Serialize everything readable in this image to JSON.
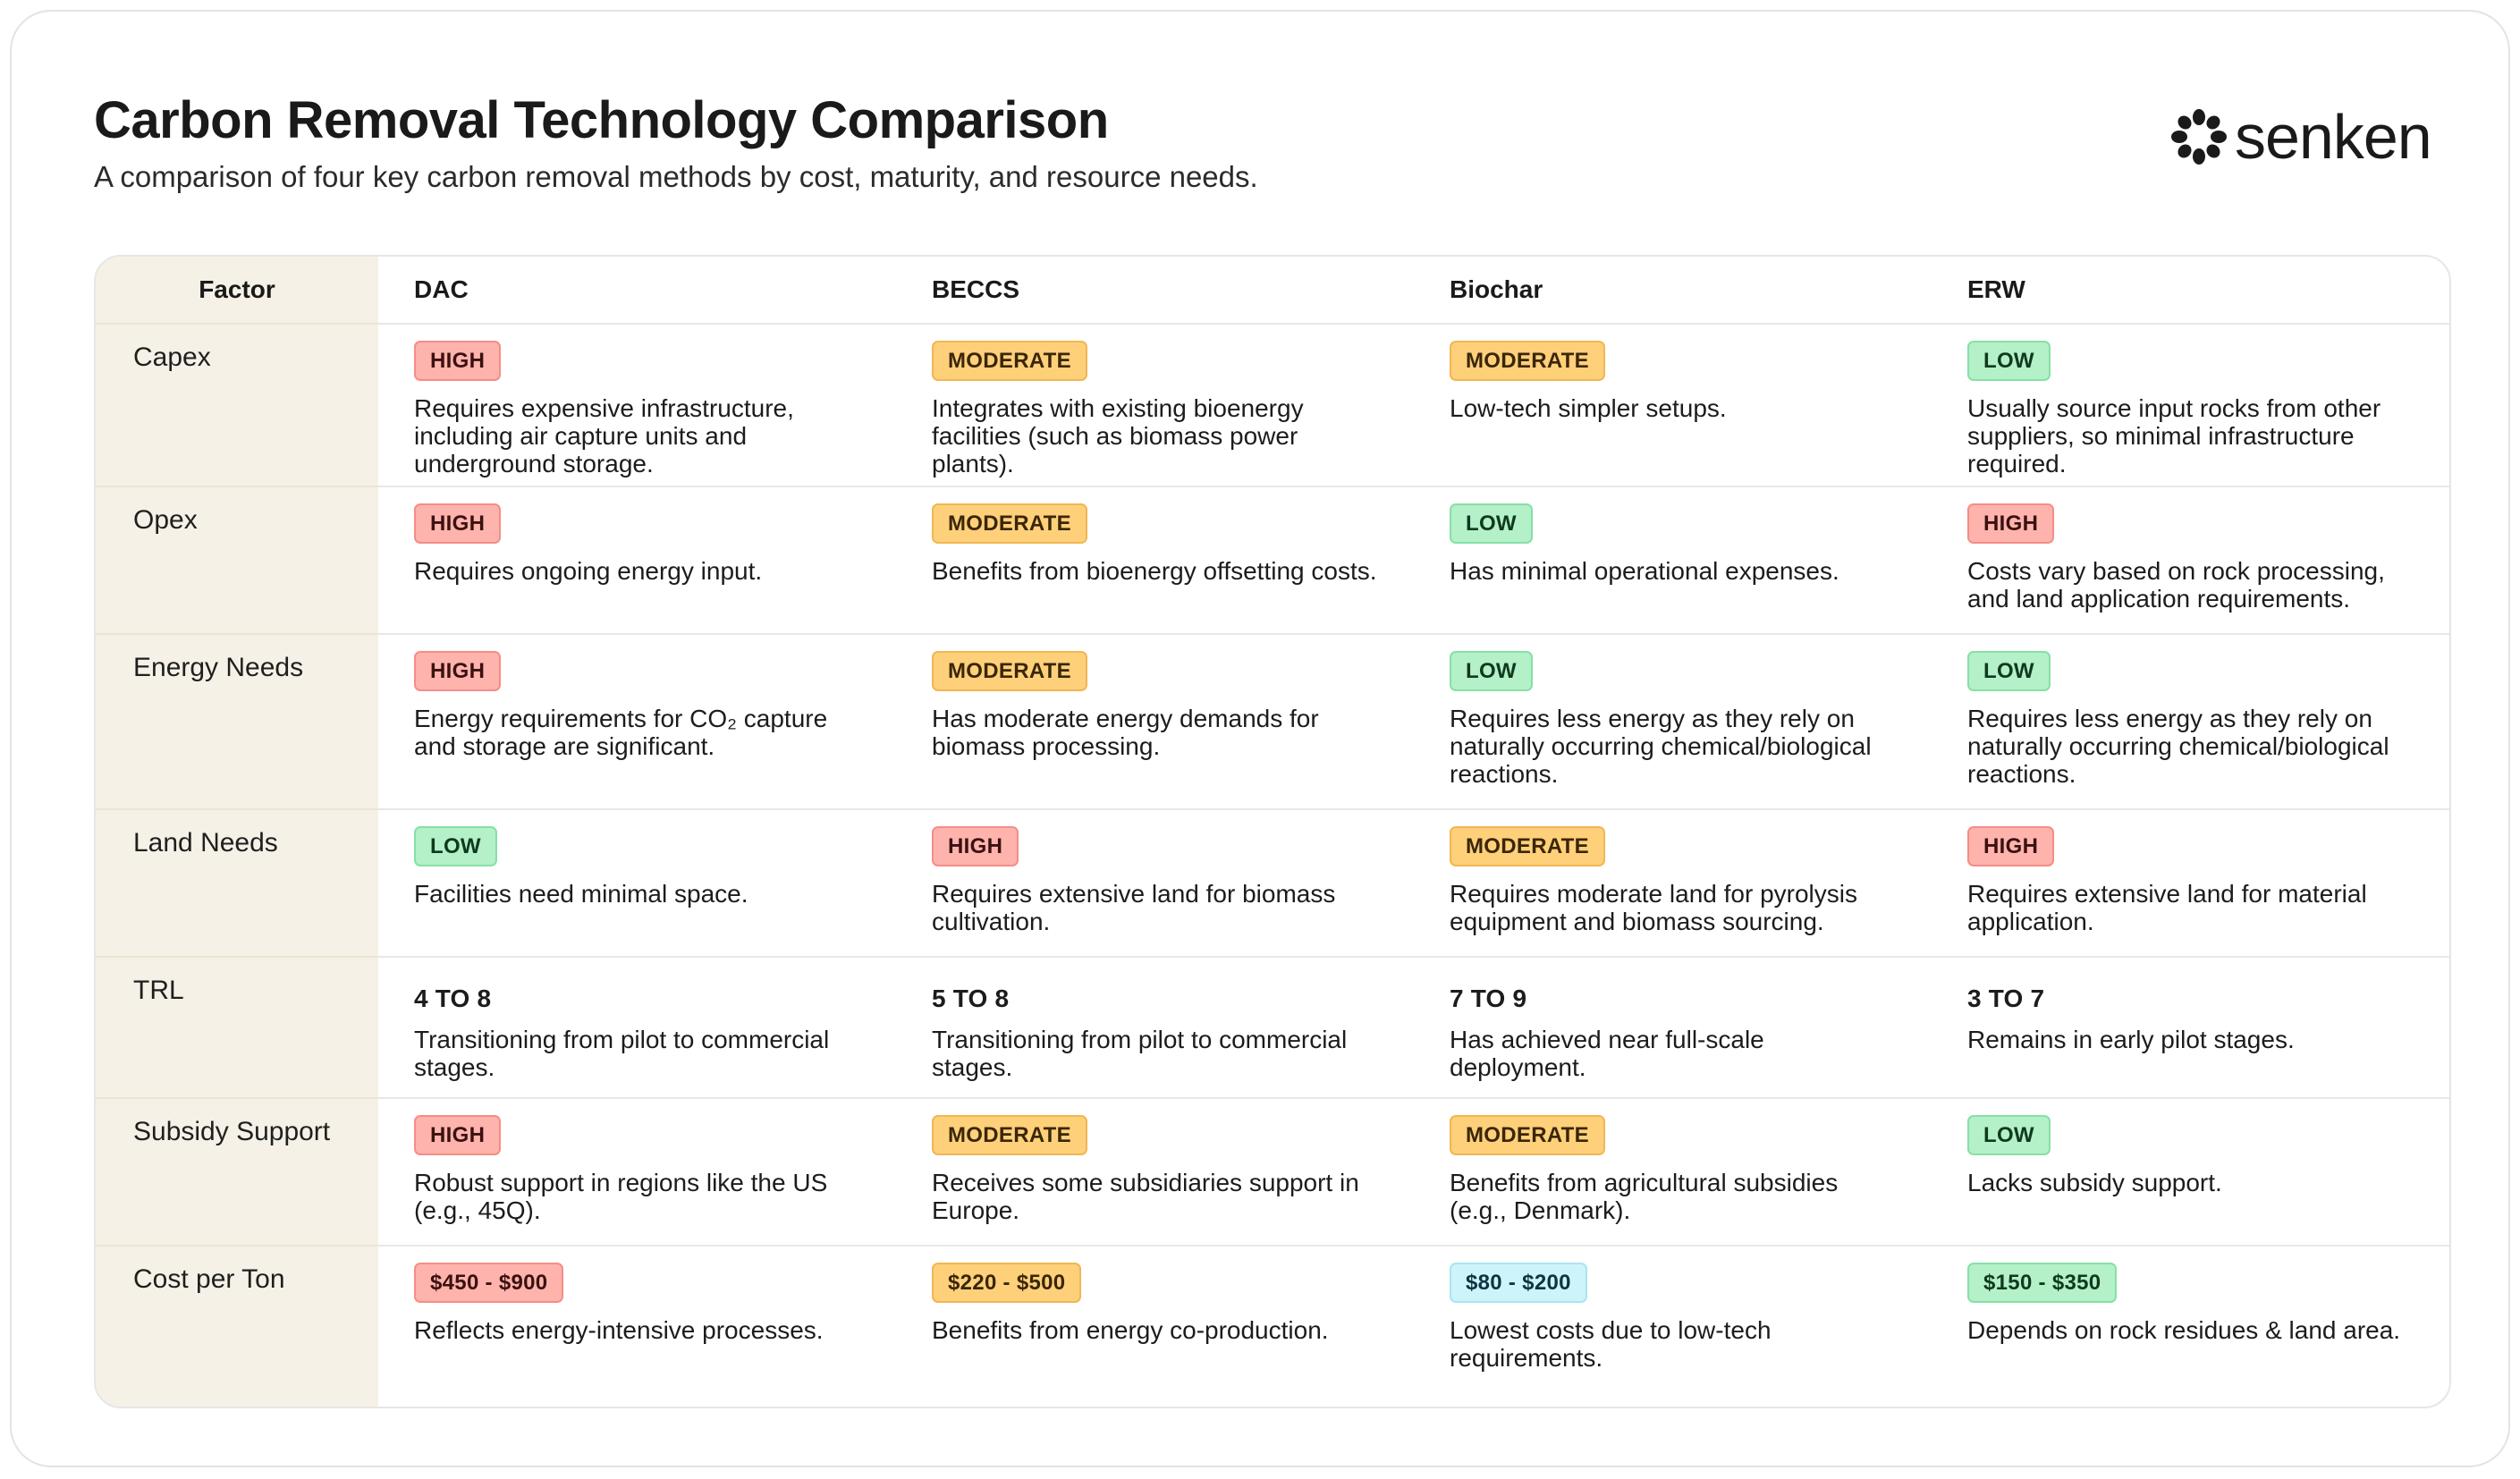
{
  "header": {
    "title": "Carbon Removal Technology Comparison",
    "subtitle": "A comparison of four key carbon removal methods by cost, maturity, and resource needs.",
    "logo_text": "senken"
  },
  "table": {
    "factor_header": "Factor",
    "columns": [
      "DAC",
      "BECCS",
      "Biochar",
      "ERW"
    ],
    "rows": [
      {
        "factor": "Capex",
        "cells": [
          {
            "level": "HIGH",
            "desc": "Requires expensive infrastructure, including air capture units and underground storage."
          },
          {
            "level": "MODERATE",
            "desc": "Integrates with existing bioenergy facilities (such as biomass power plants)."
          },
          {
            "level": "MODERATE",
            "desc": "Low-tech simpler setups."
          },
          {
            "level": "LOW",
            "desc": "Usually source input rocks from other suppliers, so minimal infrastructure required."
          }
        ]
      },
      {
        "factor": "Opex",
        "cells": [
          {
            "level": "HIGH",
            "desc": "Requires ongoing energy input."
          },
          {
            "level": "MODERATE",
            "desc": "Benefits from bioenergy offsetting costs."
          },
          {
            "level": "LOW",
            "desc": "Has minimal operational expenses."
          },
          {
            "level": "HIGH",
            "desc": "Costs vary based on rock processing, and land application requirements."
          }
        ]
      },
      {
        "factor": "Energy Needs",
        "cells": [
          {
            "level": "HIGH",
            "desc": "Energy requirements for CO₂ capture and storage are significant."
          },
          {
            "level": "MODERATE",
            "desc": "Has moderate energy demands for biomass processing."
          },
          {
            "level": "LOW",
            "desc": "Requires less energy as they rely on naturally occurring chemical/biological reactions."
          },
          {
            "level": "LOW",
            "desc": "Requires less energy as they rely on naturally occurring chemical/biological reactions."
          }
        ]
      },
      {
        "factor": "Land Needs",
        "cells": [
          {
            "level": "LOW",
            "desc": "Facilities need minimal space."
          },
          {
            "level": "HIGH",
            "desc": "Requires extensive land for biomass cultivation."
          },
          {
            "level": "MODERATE",
            "desc": "Requires moderate land for pyrolysis equipment and biomass sourcing."
          },
          {
            "level": "HIGH",
            "desc": "Requires extensive land for material application."
          }
        ]
      },
      {
        "factor": "TRL",
        "cells": [
          {
            "level": "4 TO 8",
            "desc": "Transitioning from pilot to commercial stages."
          },
          {
            "level": "5 TO 8",
            "desc": "Transitioning from pilot to commercial stages."
          },
          {
            "level": "7 TO 9",
            "desc": "Has achieved near full-scale deployment."
          },
          {
            "level": "3 TO 7",
            "desc": "Remains in early pilot stages."
          }
        ]
      },
      {
        "factor": "Subsidy Support",
        "cells": [
          {
            "level": "HIGH",
            "desc": "Robust support in regions like the US (e.g., 45Q)."
          },
          {
            "level": "MODERATE",
            "desc": "Receives some subsidiaries support in Europe."
          },
          {
            "level": "MODERATE",
            "desc": "Benefits from agricultural subsidies (e.g., Denmark)."
          },
          {
            "level": "LOW",
            "desc": "Lacks subsidy support."
          }
        ]
      },
      {
        "factor": "Cost per Ton",
        "cells": [
          {
            "level": "$450 - $900",
            "desc": "Reflects energy-intensive processes."
          },
          {
            "level": "$220 - $500",
            "desc": "Benefits from energy co-production."
          },
          {
            "level": "$80 - $200",
            "desc": "Lowest costs due to low-tech requirements."
          },
          {
            "level": "$150 - $350",
            "desc": "Depends on rock residues & land area."
          }
        ]
      }
    ]
  },
  "colors": {
    "high": "#ffb3ad",
    "moderate": "#ffd07a",
    "low": "#b4f0c8",
    "teal": "#cdf4fb",
    "factor_column": "#f5f1e6"
  }
}
